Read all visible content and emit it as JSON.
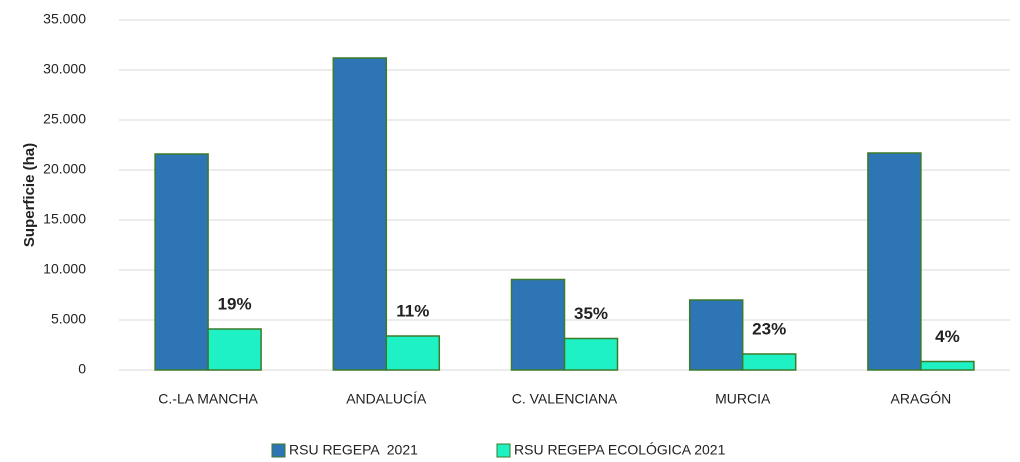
{
  "chart_data": {
    "type": "bar",
    "y_label": "Superficie (ha)",
    "categories": [
      "C.-LA MANCHA",
      "ANDALUCÍA",
      "C. VALENCIANA",
      "MURCIA",
      "ARAGÓN"
    ],
    "series": [
      {
        "name": "RSU REGEPA  2021",
        "color": "#2e75b6",
        "values": [
          21600,
          31200,
          9050,
          7000,
          21700
        ]
      },
      {
        "name": "RSU REGEPA ECOLÓGICA 2021",
        "color": "#1ef2c4",
        "values": [
          4100,
          3400,
          3150,
          1600,
          850
        ]
      }
    ],
    "annotations": [
      "19%",
      "11%",
      "35%",
      "23%",
      "4%"
    ],
    "ylim": [
      0,
      35000
    ],
    "yticks": [
      0,
      {
        "value": 5000,
        "label": "5.000"
      },
      {
        "value": 10000,
        "label": "10.000"
      },
      {
        "value": 15000,
        "label": "15.000"
      },
      {
        "value": 20000,
        "label": "20.000"
      },
      {
        "value": 25000,
        "label": "25.000"
      },
      {
        "value": 30000,
        "label": "30.000"
      },
      {
        "value": 35000,
        "label": "35.000"
      }
    ],
    "grid": true,
    "legend": "bottom"
  }
}
